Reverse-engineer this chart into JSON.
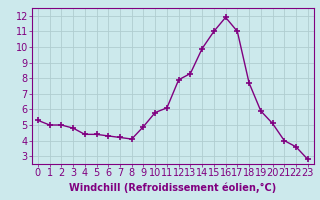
{
  "x": [
    0,
    1,
    2,
    3,
    4,
    5,
    6,
    7,
    8,
    9,
    10,
    11,
    12,
    13,
    14,
    15,
    16,
    17,
    18,
    19,
    20,
    21,
    22,
    23
  ],
  "y": [
    5.3,
    5.0,
    5.0,
    4.8,
    4.4,
    4.4,
    4.3,
    4.2,
    4.1,
    4.9,
    5.8,
    6.1,
    7.9,
    8.3,
    9.9,
    11.0,
    11.9,
    11.0,
    7.7,
    5.9,
    5.1,
    4.0,
    3.6,
    2.8
  ],
  "line_color": "#800080",
  "marker": "+",
  "marker_size": 4,
  "line_width": 1.0,
  "xlabel": "Windchill (Refroidissement éolien,°C)",
  "ylabel": "",
  "xlim": [
    -0.5,
    23.5
  ],
  "ylim": [
    2.5,
    12.5
  ],
  "yticks": [
    3,
    4,
    5,
    6,
    7,
    8,
    9,
    10,
    11,
    12
  ],
  "xticks": [
    0,
    1,
    2,
    3,
    4,
    5,
    6,
    7,
    8,
    9,
    10,
    11,
    12,
    13,
    14,
    15,
    16,
    17,
    18,
    19,
    20,
    21,
    22,
    23
  ],
  "bg_color": "#cce9ec",
  "grid_color": "#b0cdd0",
  "tick_label_color": "#800080",
  "axis_color": "#800080",
  "xlabel_color": "#800080",
  "xlabel_fontsize": 7,
  "tick_fontsize": 7
}
